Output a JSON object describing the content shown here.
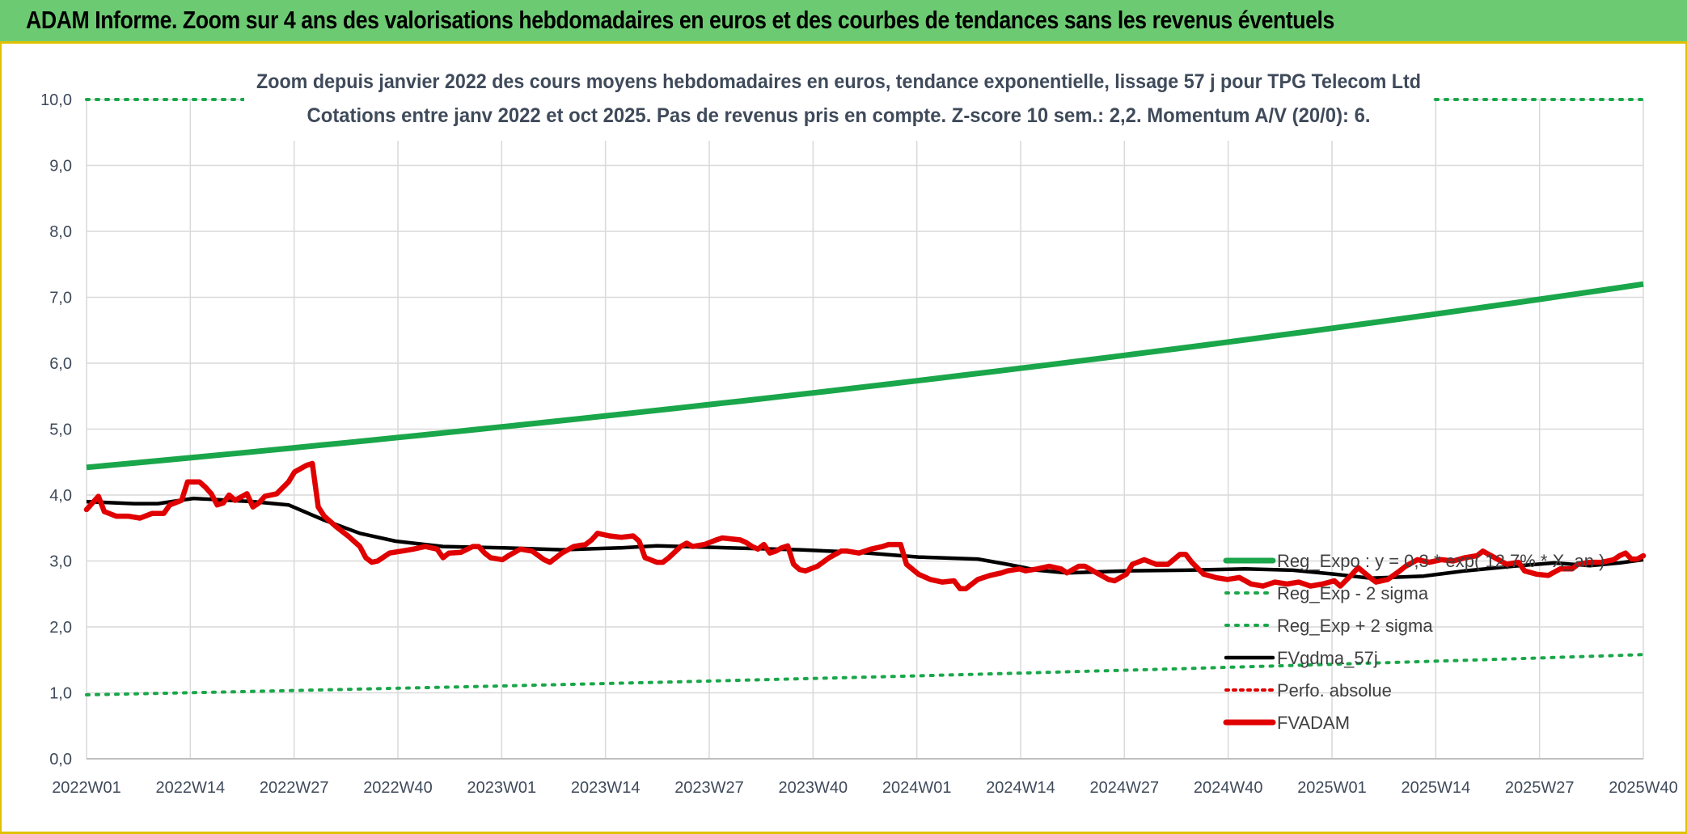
{
  "header": {
    "title": "ADAM Informe. Zoom sur 4 ans des valorisations hebdomadaires en euros et des courbes de tendances sans les revenus éventuels"
  },
  "colors": {
    "header_bg": "#6ccb72",
    "reg_expo": "#1aa64a",
    "sigma": "#1aa64a",
    "fvgdma": "#000000",
    "perfo": "#e00000",
    "fvadam": "#e00000",
    "grid": "#d9d9d9"
  },
  "chart_data": {
    "type": "line",
    "title_line1": "Zoom depuis janvier 2022 des cours moyens hebdomadaires en euros, tendance exponentielle, lissage 57 j pour TPG Telecom Ltd",
    "title_line2": "Cotations entre janv 2022 et oct 2025. Pas de revenus pris en compte. Z-score 10 sem.: 2,2. Momentum A/V (20/0): 6.",
    "ylim": [
      0,
      10
    ],
    "y_ticks": [
      "0,0",
      "1,0",
      "2,0",
      "3,0",
      "4,0",
      "5,0",
      "6,0",
      "7,0",
      "8,0",
      "9,0",
      "10,0"
    ],
    "x_tick_labels": [
      "2022W01",
      "2022W14",
      "2022W27",
      "2022W40",
      "2023W01",
      "2023W14",
      "2023W27",
      "2023W40",
      "2024W01",
      "2024W14",
      "2024W27",
      "2024W40",
      "2025W01",
      "2025W14",
      "2025W27",
      "2025W40"
    ],
    "n_weeks": 202,
    "legend": [
      {
        "key": "reg_expo",
        "label": "Reg_Expo : y = 0,3 * exp( 12,7% * X_an )"
      },
      {
        "key": "reg_minus",
        "label": "Reg_Exp - 2 sigma"
      },
      {
        "key": "reg_plus",
        "label": "Reg_Exp + 2 sigma"
      },
      {
        "key": "fvgdma",
        "label": "FVgdma_57j"
      },
      {
        "key": "perfo",
        "label": "Perfo. absolue"
      },
      {
        "key": "fvadam",
        "label": "FVADAM"
      }
    ],
    "series": {
      "reg_expo": {
        "start": 4.42,
        "end": 7.2
      },
      "reg_minus_2sigma": {
        "start": 0.97,
        "end": 1.58
      },
      "reg_plus_2sigma": {
        "value": 10.0
      },
      "fvgdma_57j": [
        [
          0,
          3.9
        ],
        [
          8,
          3.87
        ],
        [
          12,
          3.87
        ],
        [
          18,
          3.95
        ],
        [
          28,
          3.9
        ],
        [
          34,
          3.85
        ],
        [
          40,
          3.62
        ],
        [
          46,
          3.42
        ],
        [
          52,
          3.3
        ],
        [
          60,
          3.22
        ],
        [
          70,
          3.2
        ],
        [
          80,
          3.17
        ],
        [
          90,
          3.2
        ],
        [
          96,
          3.23
        ],
        [
          108,
          3.2
        ],
        [
          120,
          3.17
        ],
        [
          130,
          3.13
        ],
        [
          140,
          3.06
        ],
        [
          150,
          3.03
        ],
        [
          155,
          2.95
        ],
        [
          160,
          2.86
        ],
        [
          165,
          2.82
        ],
        [
          175,
          2.85
        ],
        [
          185,
          2.86
        ],
        [
          195,
          2.88
        ],
        [
          203,
          2.86
        ],
        [
          210,
          2.8
        ],
        [
          216,
          2.74
        ],
        [
          225,
          2.77
        ],
        [
          232,
          2.85
        ],
        [
          240,
          2.92
        ],
        [
          247,
          2.97
        ],
        [
          253,
          2.93
        ],
        [
          258,
          2.97
        ],
        [
          262,
          3.02
        ]
      ],
      "fvadam": [
        [
          0,
          3.78
        ],
        [
          2,
          3.98
        ],
        [
          3,
          3.75
        ],
        [
          5,
          3.68
        ],
        [
          7,
          3.68
        ],
        [
          9,
          3.65
        ],
        [
          11,
          3.72
        ],
        [
          13,
          3.72
        ],
        [
          14,
          3.85
        ],
        [
          16,
          3.92
        ],
        [
          17,
          4.2
        ],
        [
          19,
          4.2
        ],
        [
          20,
          4.12
        ],
        [
          21,
          4.02
        ],
        [
          22,
          3.85
        ],
        [
          23,
          3.88
        ],
        [
          24,
          4.0
        ],
        [
          25,
          3.92
        ],
        [
          27,
          4.02
        ],
        [
          28,
          3.82
        ],
        [
          29,
          3.88
        ],
        [
          30,
          3.98
        ],
        [
          32,
          4.02
        ],
        [
          34,
          4.2
        ],
        [
          35,
          4.35
        ],
        [
          37,
          4.45
        ],
        [
          38,
          4.48
        ],
        [
          39,
          3.82
        ],
        [
          40,
          3.68
        ],
        [
          42,
          3.52
        ],
        [
          44,
          3.38
        ],
        [
          46,
          3.22
        ],
        [
          47,
          3.05
        ],
        [
          48,
          2.98
        ],
        [
          49,
          3.0
        ],
        [
          51,
          3.12
        ],
        [
          53,
          3.15
        ],
        [
          55,
          3.18
        ],
        [
          57,
          3.22
        ],
        [
          59,
          3.18
        ],
        [
          60,
          3.05
        ],
        [
          61,
          3.12
        ],
        [
          63,
          3.13
        ],
        [
          65,
          3.22
        ],
        [
          66,
          3.22
        ],
        [
          67,
          3.12
        ],
        [
          68,
          3.05
        ],
        [
          70,
          3.02
        ],
        [
          71,
          3.08
        ],
        [
          73,
          3.18
        ],
        [
          75,
          3.15
        ],
        [
          77,
          3.02
        ],
        [
          78,
          2.98
        ],
        [
          80,
          3.12
        ],
        [
          82,
          3.22
        ],
        [
          84,
          3.25
        ],
        [
          85,
          3.32
        ],
        [
          86,
          3.42
        ],
        [
          88,
          3.38
        ],
        [
          90,
          3.36
        ],
        [
          92,
          3.38
        ],
        [
          93,
          3.3
        ],
        [
          94,
          3.05
        ],
        [
          96,
          2.98
        ],
        [
          97,
          2.98
        ],
        [
          98,
          3.05
        ],
        [
          100,
          3.22
        ],
        [
          101,
          3.27
        ],
        [
          102,
          3.22
        ],
        [
          104,
          3.25
        ],
        [
          106,
          3.32
        ],
        [
          107,
          3.35
        ],
        [
          109,
          3.33
        ],
        [
          110,
          3.32
        ],
        [
          111,
          3.28
        ],
        [
          112,
          3.22
        ],
        [
          113,
          3.18
        ],
        [
          114,
          3.25
        ],
        [
          115,
          3.12
        ],
        [
          116,
          3.15
        ],
        [
          117,
          3.2
        ],
        [
          118,
          3.23
        ],
        [
          119,
          2.95
        ],
        [
          120,
          2.87
        ],
        [
          121,
          2.85
        ],
        [
          123,
          2.92
        ],
        [
          125,
          3.05
        ],
        [
          127,
          3.15
        ],
        [
          128,
          3.15
        ],
        [
          130,
          3.12
        ],
        [
          132,
          3.18
        ],
        [
          134,
          3.22
        ],
        [
          135,
          3.25
        ],
        [
          136,
          3.25
        ],
        [
          137,
          3.25
        ],
        [
          138,
          2.95
        ],
        [
          140,
          2.8
        ],
        [
          142,
          2.72
        ],
        [
          144,
          2.68
        ],
        [
          146,
          2.7
        ],
        [
          147,
          2.58
        ],
        [
          148,
          2.58
        ],
        [
          150,
          2.72
        ],
        [
          152,
          2.78
        ],
        [
          154,
          2.82
        ],
        [
          155,
          2.85
        ],
        [
          157,
          2.88
        ],
        [
          158,
          2.85
        ],
        [
          160,
          2.88
        ],
        [
          162,
          2.92
        ],
        [
          164,
          2.88
        ],
        [
          165,
          2.82
        ],
        [
          167,
          2.92
        ],
        [
          168,
          2.92
        ],
        [
          170,
          2.82
        ],
        [
          172,
          2.72
        ],
        [
          173,
          2.7
        ],
        [
          175,
          2.8
        ],
        [
          176,
          2.95
        ],
        [
          178,
          3.02
        ],
        [
          180,
          2.95
        ],
        [
          182,
          2.95
        ],
        [
          184,
          3.1
        ],
        [
          185,
          3.1
        ],
        [
          186,
          2.98
        ],
        [
          188,
          2.8
        ],
        [
          190,
          2.75
        ],
        [
          192,
          2.72
        ],
        [
          194,
          2.75
        ],
        [
          196,
          2.65
        ],
        [
          198,
          2.62
        ],
        [
          200,
          2.68
        ],
        [
          202,
          2.65
        ],
        [
          204,
          2.68
        ],
        [
          206,
          2.62
        ],
        [
          208,
          2.65
        ],
        [
          210,
          2.7
        ],
        [
          211,
          2.62
        ],
        [
          213,
          2.8
        ],
        [
          214,
          2.9
        ],
        [
          216,
          2.75
        ],
        [
          217,
          2.68
        ],
        [
          219,
          2.72
        ],
        [
          221,
          2.85
        ],
        [
          222,
          2.92
        ],
        [
          224,
          3.02
        ],
        [
          226,
          2.98
        ],
        [
          228,
          3.02
        ],
        [
          230,
          3.0
        ],
        [
          232,
          3.05
        ],
        [
          234,
          3.08
        ],
        [
          235,
          3.15
        ],
        [
          237,
          3.05
        ],
        [
          239,
          2.95
        ],
        [
          241,
          2.98
        ],
        [
          242,
          2.85
        ],
        [
          244,
          2.8
        ],
        [
          246,
          2.78
        ],
        [
          248,
          2.88
        ],
        [
          250,
          2.88
        ],
        [
          251,
          2.95
        ],
        [
          253,
          2.98
        ],
        [
          255,
          2.98
        ],
        [
          257,
          3.02
        ],
        [
          258,
          3.08
        ],
        [
          259,
          3.12
        ],
        [
          260,
          3.03
        ],
        [
          261,
          3.03
        ],
        [
          262,
          3.08
        ]
      ],
      "x_max": 262
    }
  }
}
